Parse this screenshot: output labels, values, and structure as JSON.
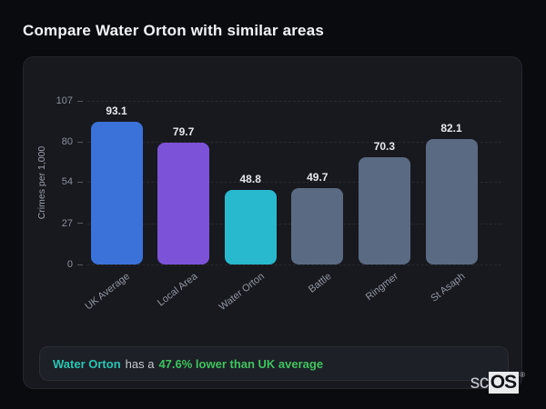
{
  "page": {
    "title": "Compare Water Orton with similar areas"
  },
  "chart_data": {
    "type": "bar",
    "title": "Compare Water Orton with similar areas",
    "xlabel": "",
    "ylabel": "Crimes per 1,000",
    "ylim": [
      0,
      107
    ],
    "yticks": [
      0,
      27,
      54,
      80,
      107
    ],
    "grid": "horizontal-dashed",
    "legend_position": "none",
    "categories": [
      "UK Average",
      "Local Area",
      "Water Orton",
      "Battle",
      "Ringmer",
      "St Asaph"
    ],
    "values": [
      93.1,
      79.7,
      48.8,
      49.7,
      70.3,
      82.1
    ],
    "bar_colors": [
      "#3b72d9",
      "#7c52d9",
      "#28b9ce",
      "#5b6a83",
      "#5b6a83",
      "#5b6a83"
    ],
    "highlighted_category": "Water Orton"
  },
  "note": {
    "area": "Water Orton",
    "middle": "has a",
    "stat": "47.6% lower than UK average",
    "area_color": "#2bc5b4",
    "stat_color": "#3ec45f"
  },
  "logo": {
    "prefix": "sc",
    "boxed": "OS",
    "registered": "®"
  },
  "colors": {
    "page_bg": "#0a0b0e",
    "card_bg": "#17191f",
    "card_border": "#24262e",
    "note_bg": "#1d2026",
    "note_border": "#2a2d35",
    "text_primary": "#f2f4f7",
    "text_muted": "#8b919c"
  }
}
